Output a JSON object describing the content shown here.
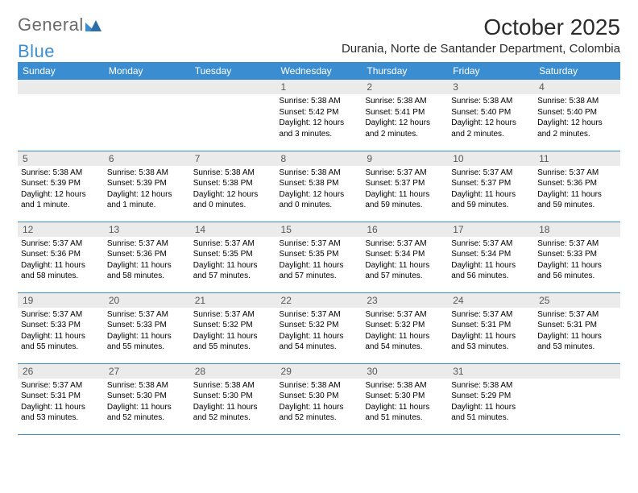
{
  "logo": {
    "text_gray": "General",
    "text_blue": "Blue"
  },
  "header": {
    "title": "October 2025",
    "subtitle": "Durania, Norte de Santander Department, Colombia"
  },
  "colors": {
    "header_bg": "#3b8dd1",
    "header_text": "#ffffff",
    "daynum_bg": "#ebebeb",
    "daynum_text": "#575757",
    "row_border": "#3b8dd1",
    "body_text": "#000000",
    "logo_gray": "#6b6b6b",
    "logo_blue": "#3b8dd1"
  },
  "typography": {
    "title_fontsize": 28,
    "subtitle_fontsize": 15,
    "header_fontsize": 12,
    "daynum_fontsize": 12,
    "body_fontsize": 10
  },
  "weekdays": [
    "Sunday",
    "Monday",
    "Tuesday",
    "Wednesday",
    "Thursday",
    "Friday",
    "Saturday"
  ],
  "weeks": [
    [
      {
        "num": "",
        "lines": []
      },
      {
        "num": "",
        "lines": []
      },
      {
        "num": "",
        "lines": []
      },
      {
        "num": "1",
        "lines": [
          "Sunrise: 5:38 AM",
          "Sunset: 5:42 PM",
          "Daylight: 12 hours",
          "and 3 minutes."
        ]
      },
      {
        "num": "2",
        "lines": [
          "Sunrise: 5:38 AM",
          "Sunset: 5:41 PM",
          "Daylight: 12 hours",
          "and 2 minutes."
        ]
      },
      {
        "num": "3",
        "lines": [
          "Sunrise: 5:38 AM",
          "Sunset: 5:40 PM",
          "Daylight: 12 hours",
          "and 2 minutes."
        ]
      },
      {
        "num": "4",
        "lines": [
          "Sunrise: 5:38 AM",
          "Sunset: 5:40 PM",
          "Daylight: 12 hours",
          "and 2 minutes."
        ]
      }
    ],
    [
      {
        "num": "5",
        "lines": [
          "Sunrise: 5:38 AM",
          "Sunset: 5:39 PM",
          "Daylight: 12 hours",
          "and 1 minute."
        ]
      },
      {
        "num": "6",
        "lines": [
          "Sunrise: 5:38 AM",
          "Sunset: 5:39 PM",
          "Daylight: 12 hours",
          "and 1 minute."
        ]
      },
      {
        "num": "7",
        "lines": [
          "Sunrise: 5:38 AM",
          "Sunset: 5:38 PM",
          "Daylight: 12 hours",
          "and 0 minutes."
        ]
      },
      {
        "num": "8",
        "lines": [
          "Sunrise: 5:38 AM",
          "Sunset: 5:38 PM",
          "Daylight: 12 hours",
          "and 0 minutes."
        ]
      },
      {
        "num": "9",
        "lines": [
          "Sunrise: 5:37 AM",
          "Sunset: 5:37 PM",
          "Daylight: 11 hours",
          "and 59 minutes."
        ]
      },
      {
        "num": "10",
        "lines": [
          "Sunrise: 5:37 AM",
          "Sunset: 5:37 PM",
          "Daylight: 11 hours",
          "and 59 minutes."
        ]
      },
      {
        "num": "11",
        "lines": [
          "Sunrise: 5:37 AM",
          "Sunset: 5:36 PM",
          "Daylight: 11 hours",
          "and 59 minutes."
        ]
      }
    ],
    [
      {
        "num": "12",
        "lines": [
          "Sunrise: 5:37 AM",
          "Sunset: 5:36 PM",
          "Daylight: 11 hours",
          "and 58 minutes."
        ]
      },
      {
        "num": "13",
        "lines": [
          "Sunrise: 5:37 AM",
          "Sunset: 5:36 PM",
          "Daylight: 11 hours",
          "and 58 minutes."
        ]
      },
      {
        "num": "14",
        "lines": [
          "Sunrise: 5:37 AM",
          "Sunset: 5:35 PM",
          "Daylight: 11 hours",
          "and 57 minutes."
        ]
      },
      {
        "num": "15",
        "lines": [
          "Sunrise: 5:37 AM",
          "Sunset: 5:35 PM",
          "Daylight: 11 hours",
          "and 57 minutes."
        ]
      },
      {
        "num": "16",
        "lines": [
          "Sunrise: 5:37 AM",
          "Sunset: 5:34 PM",
          "Daylight: 11 hours",
          "and 57 minutes."
        ]
      },
      {
        "num": "17",
        "lines": [
          "Sunrise: 5:37 AM",
          "Sunset: 5:34 PM",
          "Daylight: 11 hours",
          "and 56 minutes."
        ]
      },
      {
        "num": "18",
        "lines": [
          "Sunrise: 5:37 AM",
          "Sunset: 5:33 PM",
          "Daylight: 11 hours",
          "and 56 minutes."
        ]
      }
    ],
    [
      {
        "num": "19",
        "lines": [
          "Sunrise: 5:37 AM",
          "Sunset: 5:33 PM",
          "Daylight: 11 hours",
          "and 55 minutes."
        ]
      },
      {
        "num": "20",
        "lines": [
          "Sunrise: 5:37 AM",
          "Sunset: 5:33 PM",
          "Daylight: 11 hours",
          "and 55 minutes."
        ]
      },
      {
        "num": "21",
        "lines": [
          "Sunrise: 5:37 AM",
          "Sunset: 5:32 PM",
          "Daylight: 11 hours",
          "and 55 minutes."
        ]
      },
      {
        "num": "22",
        "lines": [
          "Sunrise: 5:37 AM",
          "Sunset: 5:32 PM",
          "Daylight: 11 hours",
          "and 54 minutes."
        ]
      },
      {
        "num": "23",
        "lines": [
          "Sunrise: 5:37 AM",
          "Sunset: 5:32 PM",
          "Daylight: 11 hours",
          "and 54 minutes."
        ]
      },
      {
        "num": "24",
        "lines": [
          "Sunrise: 5:37 AM",
          "Sunset: 5:31 PM",
          "Daylight: 11 hours",
          "and 53 minutes."
        ]
      },
      {
        "num": "25",
        "lines": [
          "Sunrise: 5:37 AM",
          "Sunset: 5:31 PM",
          "Daylight: 11 hours",
          "and 53 minutes."
        ]
      }
    ],
    [
      {
        "num": "26",
        "lines": [
          "Sunrise: 5:37 AM",
          "Sunset: 5:31 PM",
          "Daylight: 11 hours",
          "and 53 minutes."
        ]
      },
      {
        "num": "27",
        "lines": [
          "Sunrise: 5:38 AM",
          "Sunset: 5:30 PM",
          "Daylight: 11 hours",
          "and 52 minutes."
        ]
      },
      {
        "num": "28",
        "lines": [
          "Sunrise: 5:38 AM",
          "Sunset: 5:30 PM",
          "Daylight: 11 hours",
          "and 52 minutes."
        ]
      },
      {
        "num": "29",
        "lines": [
          "Sunrise: 5:38 AM",
          "Sunset: 5:30 PM",
          "Daylight: 11 hours",
          "and 52 minutes."
        ]
      },
      {
        "num": "30",
        "lines": [
          "Sunrise: 5:38 AM",
          "Sunset: 5:30 PM",
          "Daylight: 11 hours",
          "and 51 minutes."
        ]
      },
      {
        "num": "31",
        "lines": [
          "Sunrise: 5:38 AM",
          "Sunset: 5:29 PM",
          "Daylight: 11 hours",
          "and 51 minutes."
        ]
      },
      {
        "num": "",
        "lines": []
      }
    ]
  ]
}
